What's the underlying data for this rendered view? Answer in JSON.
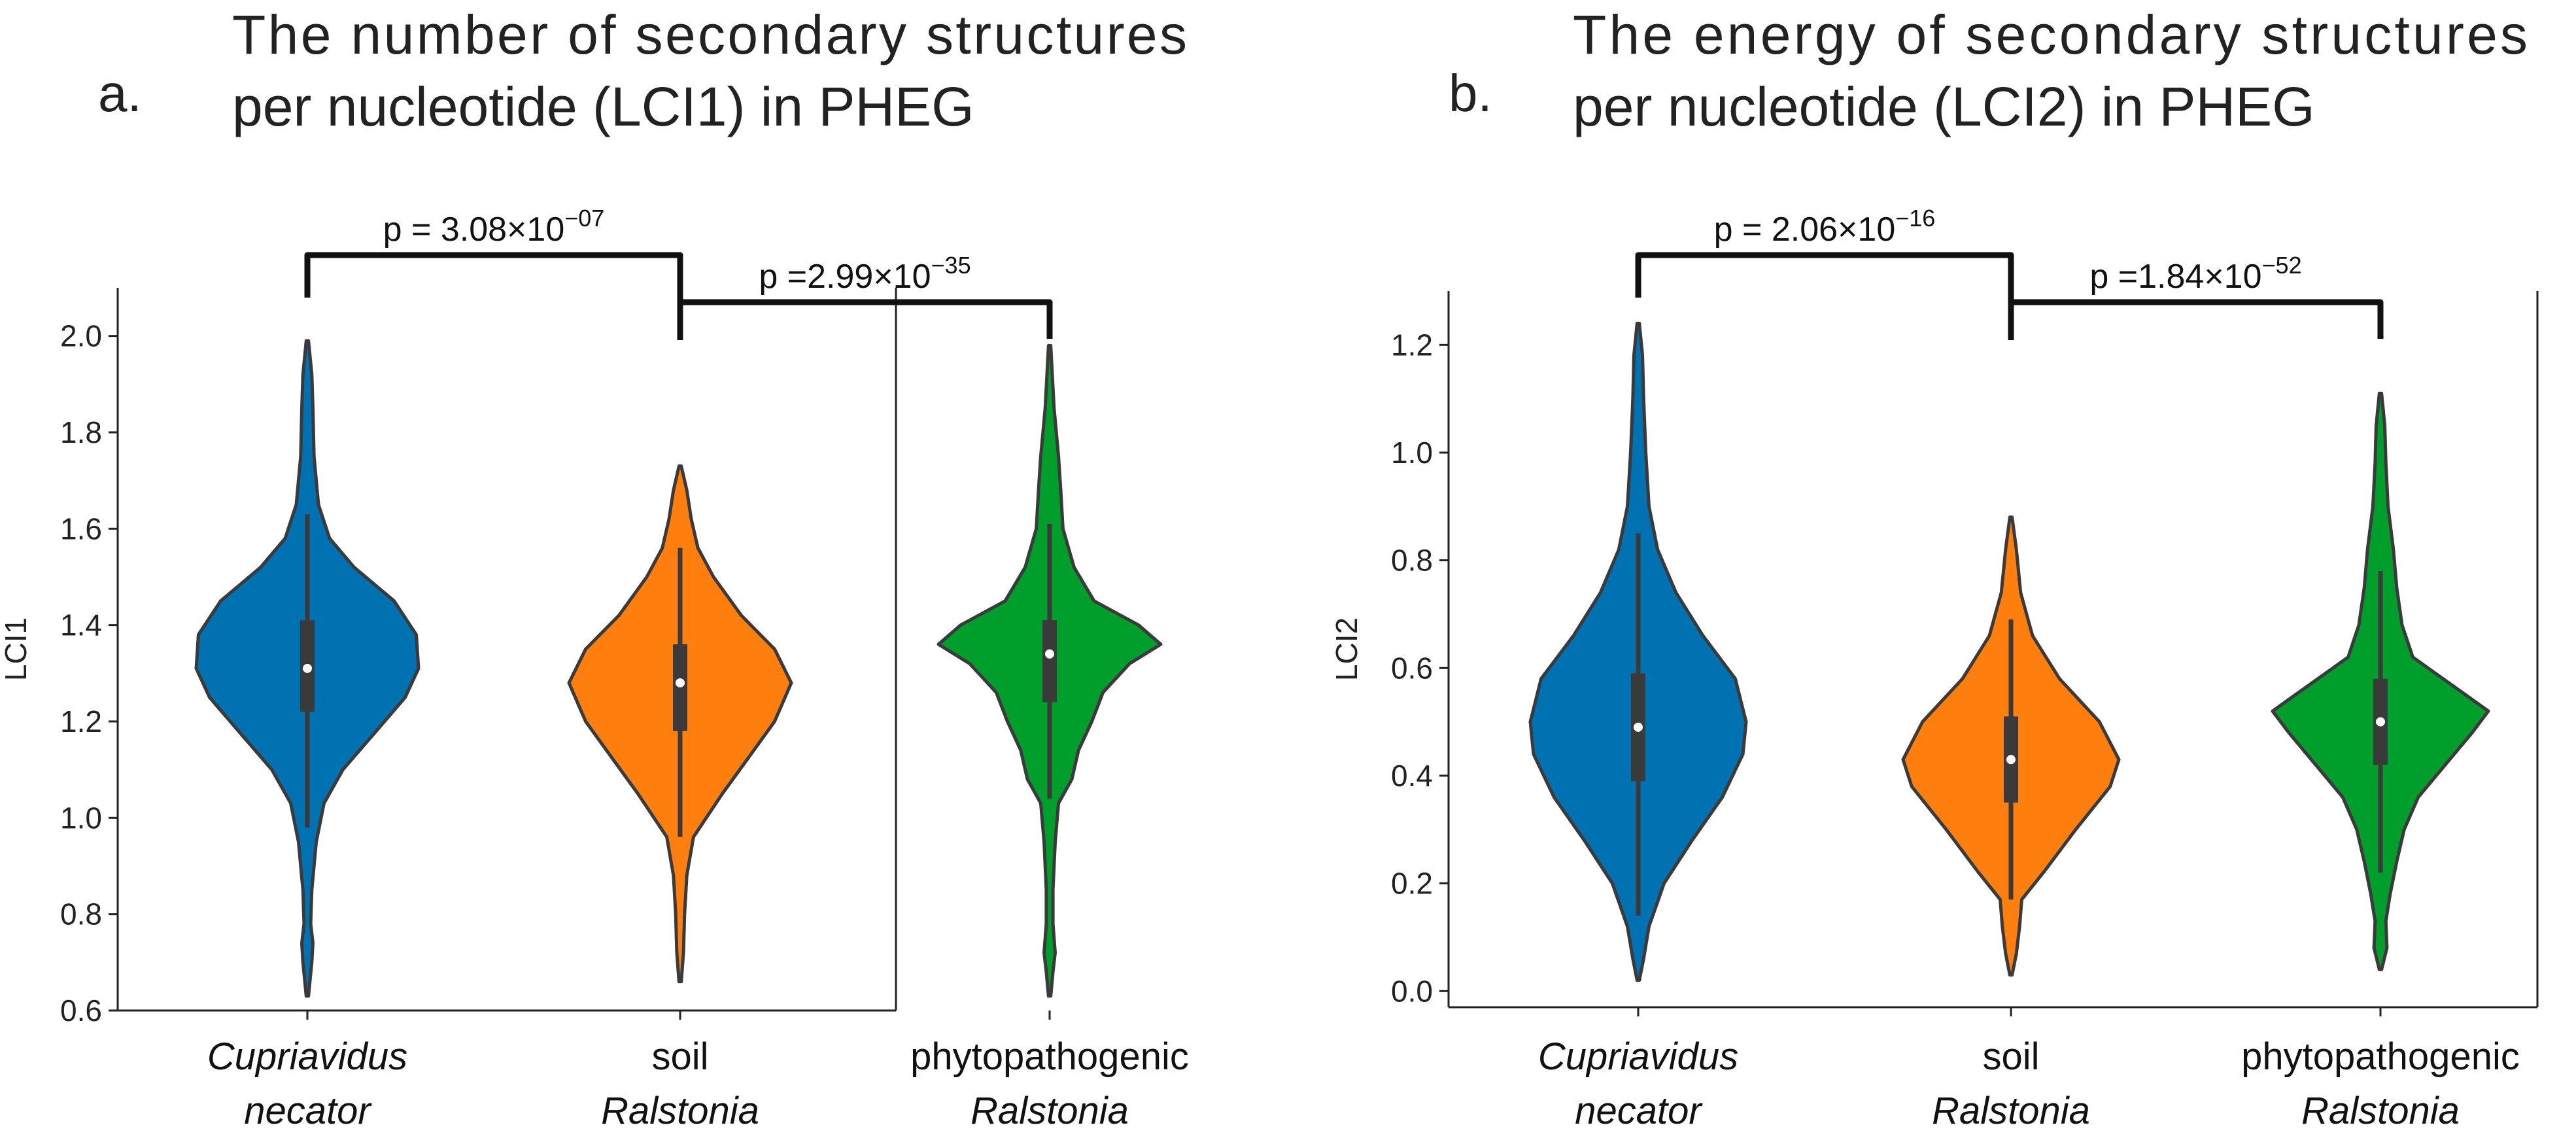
{
  "chart_data": [
    {
      "type": "violin",
      "panel_letter": "a.",
      "title_lines": [
        "The number of secondary structures",
        "per nucleotide (LCI1) in PHEG"
      ],
      "ylabel": "LCI1",
      "ylim": [
        0.6,
        2.1
      ],
      "yticks": [
        "0.6",
        "0.8",
        "1.0",
        "1.2",
        "1.4",
        "1.6",
        "1.8",
        "2.0"
      ],
      "categories": [
        {
          "line1": "Cupriavidus",
          "line1_italic": true,
          "line2": "necator",
          "line2_italic": true
        },
        {
          "line1": "soil",
          "line1_italic": false,
          "line2": "Ralstonia",
          "line2_italic": true
        },
        {
          "line1": "phytopathogenic",
          "line1_italic": false,
          "line2": "Ralstonia",
          "line2_italic": true
        }
      ],
      "series": [
        {
          "name": "Cupriavidus necator",
          "color": "#0072B2",
          "min": 0.63,
          "max": 1.99,
          "q1": 1.22,
          "median": 1.31,
          "q3": 1.41,
          "whisker_low": 0.98,
          "whisker_high": 1.63,
          "density": [
            [
              0.63,
              0.01
            ],
            [
              0.7,
              0.04
            ],
            [
              0.74,
              0.05
            ],
            [
              0.78,
              0.03
            ],
            [
              0.85,
              0.04
            ],
            [
              0.95,
              0.08
            ],
            [
              1.03,
              0.15
            ],
            [
              1.1,
              0.32
            ],
            [
              1.18,
              0.62
            ],
            [
              1.25,
              0.88
            ],
            [
              1.31,
              1.0
            ],
            [
              1.38,
              0.98
            ],
            [
              1.45,
              0.78
            ],
            [
              1.52,
              0.42
            ],
            [
              1.58,
              0.2
            ],
            [
              1.65,
              0.1
            ],
            [
              1.75,
              0.06
            ],
            [
              1.85,
              0.05
            ],
            [
              1.92,
              0.04
            ],
            [
              1.99,
              0.01
            ]
          ]
        },
        {
          "name": "soil Ralstonia",
          "color": "#FF7F0E",
          "min": 0.66,
          "max": 1.73,
          "q1": 1.18,
          "median": 1.28,
          "q3": 1.36,
          "whisker_low": 0.96,
          "whisker_high": 1.56,
          "density": [
            [
              0.66,
              0.01
            ],
            [
              0.72,
              0.03
            ],
            [
              0.8,
              0.04
            ],
            [
              0.88,
              0.06
            ],
            [
              0.96,
              0.12
            ],
            [
              1.05,
              0.38
            ],
            [
              1.12,
              0.6
            ],
            [
              1.2,
              0.85
            ],
            [
              1.28,
              1.0
            ],
            [
              1.35,
              0.85
            ],
            [
              1.42,
              0.55
            ],
            [
              1.5,
              0.3
            ],
            [
              1.56,
              0.16
            ],
            [
              1.62,
              0.1
            ],
            [
              1.68,
              0.06
            ],
            [
              1.73,
              0.01
            ]
          ]
        },
        {
          "name": "phytopathogenic Ralstonia",
          "color": "#009E2B",
          "min": 0.63,
          "max": 1.98,
          "q1": 1.24,
          "median": 1.34,
          "q3": 1.41,
          "whisker_low": 1.04,
          "whisker_high": 1.61,
          "density": [
            [
              0.63,
              0.01
            ],
            [
              0.68,
              0.03
            ],
            [
              0.72,
              0.05
            ],
            [
              0.78,
              0.03
            ],
            [
              0.85,
              0.03
            ],
            [
              0.95,
              0.05
            ],
            [
              1.03,
              0.08
            ],
            [
              1.08,
              0.2
            ],
            [
              1.14,
              0.26
            ],
            [
              1.2,
              0.38
            ],
            [
              1.26,
              0.48
            ],
            [
              1.32,
              0.72
            ],
            [
              1.36,
              1.0
            ],
            [
              1.4,
              0.8
            ],
            [
              1.45,
              0.4
            ],
            [
              1.52,
              0.22
            ],
            [
              1.6,
              0.12
            ],
            [
              1.68,
              0.1
            ],
            [
              1.75,
              0.08
            ],
            [
              1.85,
              0.04
            ],
            [
              1.98,
              0.01
            ]
          ]
        }
      ],
      "brackets": [
        {
          "from": 0,
          "to": 1,
          "p_base": "p = 3.08×10",
          "p_exp": "−07"
        },
        {
          "from": 1,
          "to": 2,
          "p_base": "p =2.99×10",
          "p_exp": "−35"
        }
      ]
    },
    {
      "type": "violin",
      "panel_letter": "b.",
      "title_lines": [
        "The energy of secondary structures",
        "per nucleotide (LCI2) in PHEG"
      ],
      "ylabel": "LCI2",
      "ylim": [
        -0.03,
        1.3
      ],
      "yticks": [
        "0.0",
        "0.2",
        "0.4",
        "0.6",
        "0.8",
        "1.0",
        "1.2"
      ],
      "categories": [
        {
          "line1": "Cupriavidus",
          "line1_italic": true,
          "line2": "necator",
          "line2_italic": true
        },
        {
          "line1": "soil",
          "line1_italic": false,
          "line2": "Ralstonia",
          "line2_italic": true
        },
        {
          "line1": "phytopathogenic",
          "line1_italic": false,
          "line2": "Ralstonia",
          "line2_italic": true
        }
      ],
      "series": [
        {
          "name": "Cupriavidus necator",
          "color": "#0072B2",
          "min": 0.02,
          "max": 1.24,
          "q1": 0.39,
          "median": 0.49,
          "q3": 0.59,
          "whisker_low": 0.14,
          "whisker_high": 0.85,
          "density": [
            [
              0.02,
              0.01
            ],
            [
              0.06,
              0.05
            ],
            [
              0.12,
              0.1
            ],
            [
              0.2,
              0.24
            ],
            [
              0.28,
              0.5
            ],
            [
              0.36,
              0.78
            ],
            [
              0.44,
              0.97
            ],
            [
              0.5,
              1.0
            ],
            [
              0.58,
              0.9
            ],
            [
              0.66,
              0.6
            ],
            [
              0.74,
              0.35
            ],
            [
              0.82,
              0.18
            ],
            [
              0.9,
              0.1
            ],
            [
              1.0,
              0.07
            ],
            [
              1.1,
              0.05
            ],
            [
              1.18,
              0.04
            ],
            [
              1.24,
              0.01
            ]
          ]
        },
        {
          "name": "soil Ralstonia",
          "color": "#FF7F0E",
          "min": 0.03,
          "max": 0.88,
          "q1": 0.35,
          "median": 0.43,
          "q3": 0.51,
          "whisker_low": 0.17,
          "whisker_high": 0.69,
          "density": [
            [
              0.03,
              0.01
            ],
            [
              0.07,
              0.05
            ],
            [
              0.12,
              0.08
            ],
            [
              0.17,
              0.1
            ],
            [
              0.22,
              0.3
            ],
            [
              0.3,
              0.6
            ],
            [
              0.38,
              0.92
            ],
            [
              0.43,
              1.0
            ],
            [
              0.5,
              0.82
            ],
            [
              0.58,
              0.45
            ],
            [
              0.66,
              0.2
            ],
            [
              0.74,
              0.09
            ],
            [
              0.82,
              0.05
            ],
            [
              0.88,
              0.01
            ]
          ]
        },
        {
          "name": "phytopathogenic Ralstonia",
          "color": "#009E2B",
          "min": 0.04,
          "max": 1.11,
          "q1": 0.42,
          "median": 0.5,
          "q3": 0.58,
          "whisker_low": 0.22,
          "whisker_high": 0.78,
          "density": [
            [
              0.04,
              0.01
            ],
            [
              0.08,
              0.06
            ],
            [
              0.13,
              0.05
            ],
            [
              0.18,
              0.09
            ],
            [
              0.24,
              0.15
            ],
            [
              0.3,
              0.22
            ],
            [
              0.36,
              0.35
            ],
            [
              0.42,
              0.6
            ],
            [
              0.48,
              0.85
            ],
            [
              0.52,
              1.0
            ],
            [
              0.56,
              0.72
            ],
            [
              0.62,
              0.3
            ],
            [
              0.68,
              0.2
            ],
            [
              0.75,
              0.15
            ],
            [
              0.82,
              0.12
            ],
            [
              0.9,
              0.07
            ],
            [
              0.98,
              0.05
            ],
            [
              1.05,
              0.04
            ],
            [
              1.11,
              0.01
            ]
          ]
        }
      ],
      "brackets": [
        {
          "from": 0,
          "to": 1,
          "p_base": "p = 2.06×10",
          "p_exp": "−16"
        },
        {
          "from": 1,
          "to": 2,
          "p_base": "p =1.84×10",
          "p_exp": "−52"
        }
      ]
    }
  ]
}
